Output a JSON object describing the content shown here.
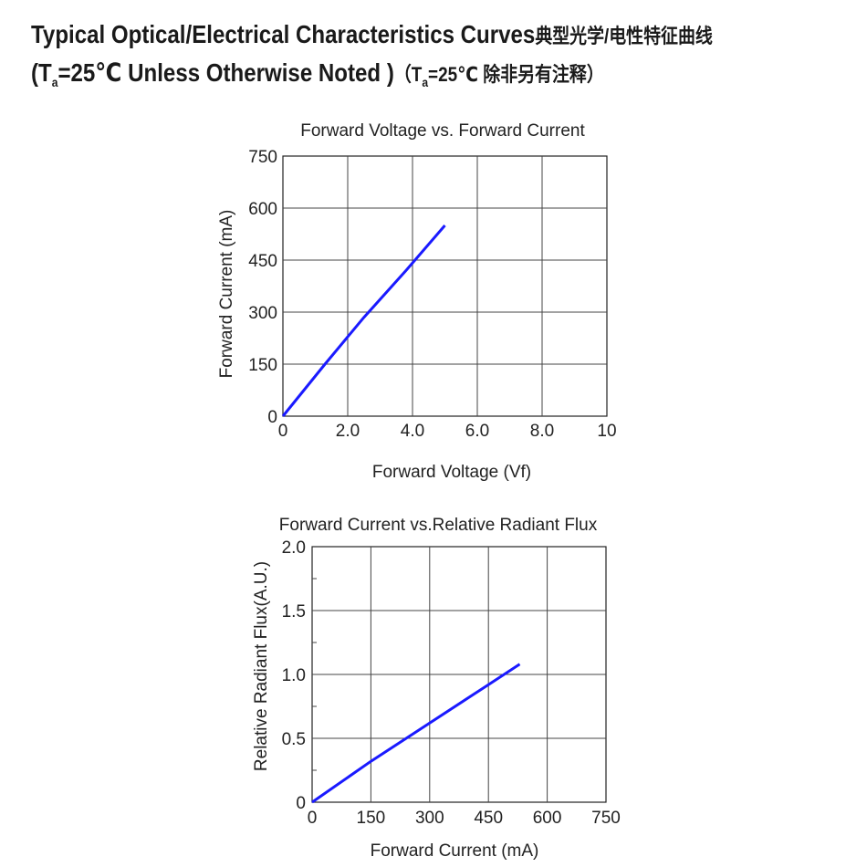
{
  "header": {
    "line1_en": "Typical Optical/Electrical Characteristics Curves",
    "line1_cn": "典型光学/电性特征曲线",
    "line2_open": "(T",
    "line2_sub": "a",
    "line2_eq": "=25℃ Unless Otherwise Noted )",
    "line2_cn_open": "（T",
    "line2_cn_sub": "a",
    "line2_cn_rest": "=25℃ 除非另有注释）"
  },
  "chart_data": [
    {
      "type": "line",
      "title": "Forward Voltage vs. Forward Current",
      "xlabel": "Forward Voltage (Vf)",
      "ylabel": "Forward Current (mA)",
      "xlim": [
        0,
        10
      ],
      "ylim": [
        0,
        750
      ],
      "xticks": [
        0,
        2,
        4,
        6,
        8,
        10
      ],
      "xtick_labels": [
        "0",
        "2.0",
        "4.0",
        "6.0",
        "8.0",
        "10"
      ],
      "yticks": [
        0,
        150,
        300,
        450,
        600,
        750
      ],
      "ytick_labels": [
        "0",
        "150",
        "300",
        "450",
        "600",
        "750"
      ],
      "grid": true,
      "series": [
        {
          "color": "#1a1aff",
          "x": [
            0,
            1.3,
            2.5,
            3.8,
            5.0
          ],
          "y": [
            0,
            150,
            285,
            420,
            550
          ]
        }
      ]
    },
    {
      "type": "line",
      "title": "Forward Current vs.Relative Radiant Flux",
      "xlabel": "Forward Current (mA)",
      "ylabel": "Relative Radiant Flux(A.U.)",
      "xlim": [
        0,
        750
      ],
      "ylim": [
        0,
        2.0
      ],
      "xticks": [
        0,
        150,
        300,
        450,
        600,
        750
      ],
      "xtick_labels": [
        "0",
        "150",
        "300",
        "450",
        "600",
        "750"
      ],
      "yticks": [
        0,
        0.5,
        1.0,
        1.5,
        2.0
      ],
      "ytick_labels": [
        "0",
        "0.5",
        "1.0",
        "1.5",
        "2.0"
      ],
      "grid": true,
      "series": [
        {
          "color": "#1a1aff",
          "x": [
            0,
            150,
            300,
            450,
            530
          ],
          "y": [
            0,
            0.32,
            0.62,
            0.92,
            1.08
          ]
        }
      ]
    }
  ]
}
